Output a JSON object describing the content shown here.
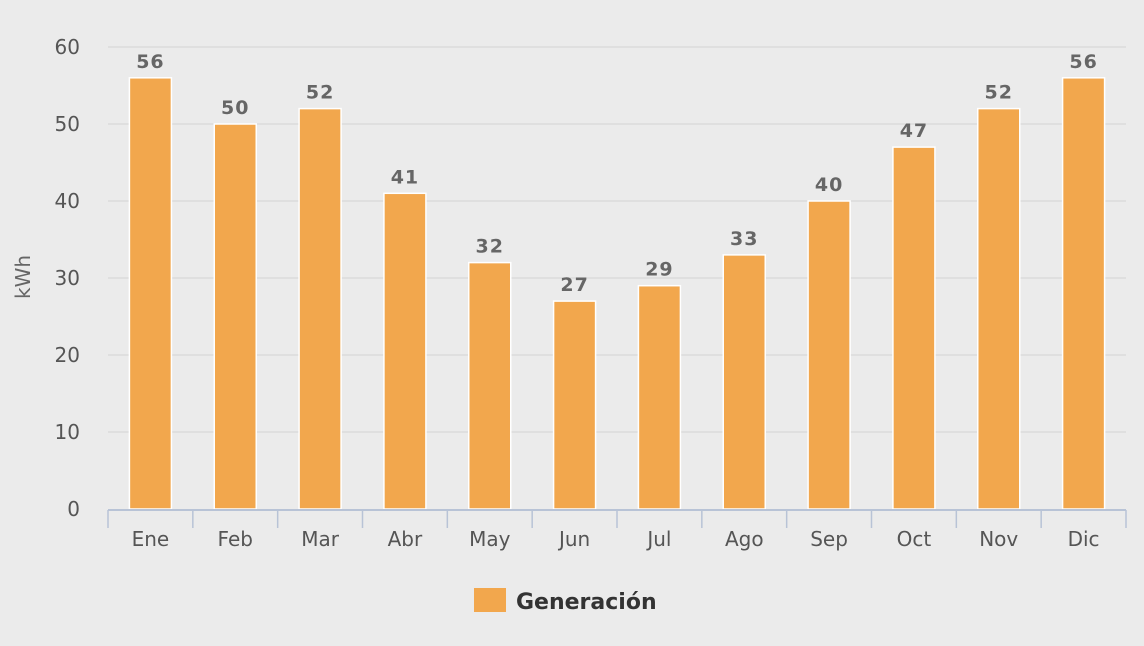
{
  "chart_data": {
    "type": "bar",
    "categories": [
      "Ene",
      "Feb",
      "Mar",
      "Abr",
      "May",
      "Jun",
      "Jul",
      "Ago",
      "Sep",
      "Oct",
      "Nov",
      "Dic"
    ],
    "series": [
      {
        "name": "Generación",
        "values": [
          56,
          50,
          52,
          41,
          32,
          27,
          29,
          33,
          40,
          47,
          52,
          56
        ],
        "color": "#f2a74d"
      }
    ],
    "ylabel": "kWh",
    "ylim": [
      0,
      60
    ],
    "yticks": [
      0,
      10,
      20,
      30,
      40,
      50,
      60
    ],
    "grid": true,
    "legend_position": "bottom-center",
    "data_labels": true
  },
  "colors": {
    "background": "#ebebeb",
    "grid": "#d3d3d3",
    "axis": "#b8c3d6",
    "bar_border": "#ffffff"
  }
}
